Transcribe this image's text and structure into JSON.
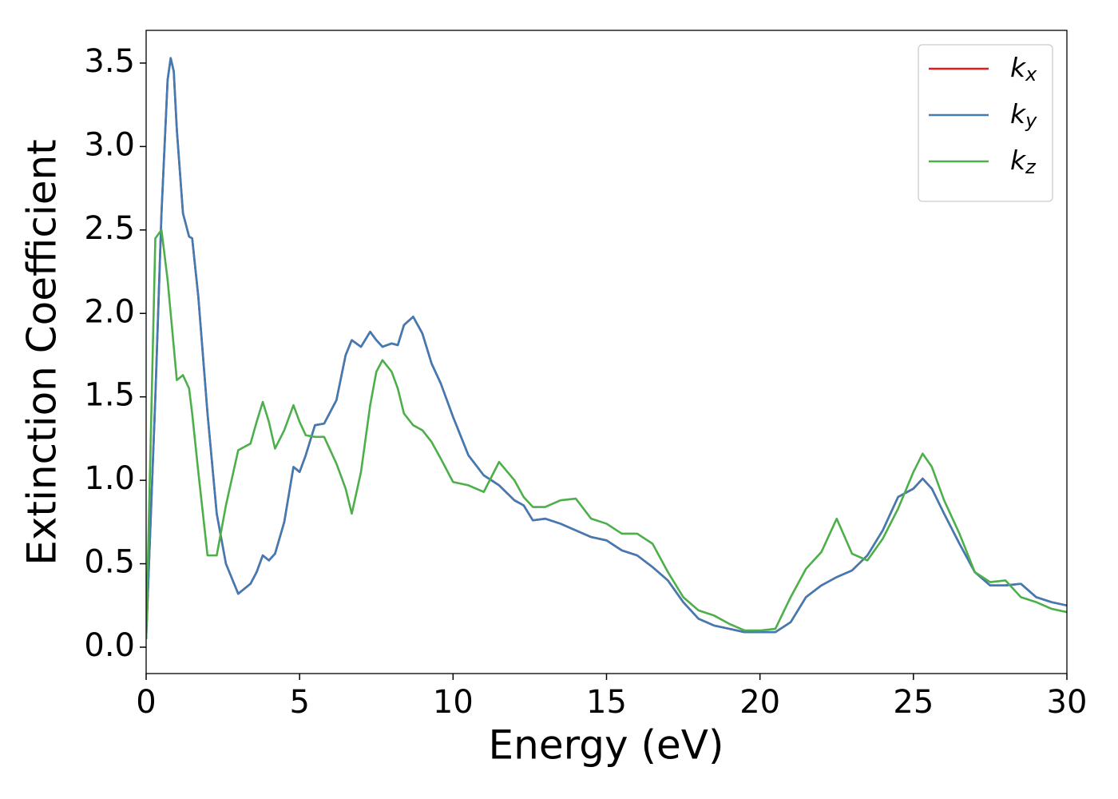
{
  "chart_data": {
    "type": "line",
    "xlabel": "Energy (eV)",
    "ylabel": "Extinction Coefficient",
    "xlim": [
      0,
      30
    ],
    "ylim": [
      -0.158,
      3.696
    ],
    "xticks": [
      0,
      5,
      10,
      15,
      20,
      25,
      30
    ],
    "yticks": [
      {
        "value": 0,
        "label": "0.0"
      },
      {
        "value": 0.5,
        "label": "0.5"
      },
      {
        "value": 1,
        "label": "1.0"
      },
      {
        "value": 1.5,
        "label": "1.5"
      },
      {
        "value": 2,
        "label": "2.0"
      },
      {
        "value": 2.5,
        "label": "2.5"
      },
      {
        "value": 3,
        "label": "3.0"
      },
      {
        "value": 3.5,
        "label": "3.5"
      }
    ],
    "legend": "upper right",
    "grid": false,
    "x": [
      0,
      0.3,
      0.5,
      0.7,
      0.8,
      0.9,
      1.0,
      1.2,
      1.4,
      1.5,
      1.7,
      2.0,
      2.3,
      2.6,
      3.0,
      3.4,
      3.6,
      3.8,
      4.0,
      4.2,
      4.5,
      4.8,
      5.0,
      5.2,
      5.5,
      5.8,
      6.2,
      6.5,
      6.7,
      7.0,
      7.3,
      7.5,
      7.7,
      8.0,
      8.2,
      8.4,
      8.7,
      9.0,
      9.3,
      9.6,
      10,
      10.5,
      11,
      11.5,
      12,
      12.3,
      12.6,
      13,
      13.5,
      14,
      14.5,
      15,
      15.5,
      16,
      16.5,
      17,
      17.5,
      18,
      18.5,
      19,
      19.5,
      20,
      20.5,
      21,
      21.5,
      22,
      22.5,
      23,
      23.5,
      24,
      24.5,
      25,
      25.3,
      25.6,
      26,
      26.5,
      27,
      27.5,
      28,
      28.5,
      29,
      29.5,
      30
    ],
    "series": [
      {
        "name": "kx",
        "color": "#e41a1c",
        "values": [
          0.05,
          1.5,
          2.6,
          3.4,
          3.53,
          3.45,
          3.1,
          2.6,
          2.46,
          2.45,
          2.1,
          1.4,
          0.8,
          0.5,
          0.32,
          0.38,
          0.45,
          0.55,
          0.52,
          0.56,
          0.75,
          1.08,
          1.05,
          1.15,
          1.33,
          1.34,
          1.48,
          1.75,
          1.84,
          1.8,
          1.89,
          1.84,
          1.8,
          1.82,
          1.81,
          1.93,
          1.98,
          1.88,
          1.7,
          1.58,
          1.38,
          1.15,
          1.03,
          0.97,
          0.88,
          0.85,
          0.76,
          0.77,
          0.74,
          0.7,
          0.66,
          0.64,
          0.58,
          0.55,
          0.48,
          0.4,
          0.27,
          0.17,
          0.13,
          0.11,
          0.09,
          0.09,
          0.09,
          0.15,
          0.3,
          0.37,
          0.42,
          0.46,
          0.55,
          0.7,
          0.9,
          0.95,
          1.01,
          0.95,
          0.8,
          0.62,
          0.45,
          0.37,
          0.37,
          0.38,
          0.3,
          0.27,
          0.25
        ]
      },
      {
        "name": "ky",
        "color": "#3f7bb5",
        "values": [
          0.05,
          1.5,
          2.6,
          3.4,
          3.53,
          3.45,
          3.1,
          2.6,
          2.46,
          2.45,
          2.1,
          1.4,
          0.8,
          0.5,
          0.32,
          0.38,
          0.45,
          0.55,
          0.52,
          0.56,
          0.75,
          1.08,
          1.05,
          1.15,
          1.33,
          1.34,
          1.48,
          1.75,
          1.84,
          1.8,
          1.89,
          1.84,
          1.8,
          1.82,
          1.81,
          1.93,
          1.98,
          1.88,
          1.7,
          1.58,
          1.38,
          1.15,
          1.03,
          0.97,
          0.88,
          0.85,
          0.76,
          0.77,
          0.74,
          0.7,
          0.66,
          0.64,
          0.58,
          0.55,
          0.48,
          0.4,
          0.27,
          0.17,
          0.13,
          0.11,
          0.09,
          0.09,
          0.09,
          0.15,
          0.3,
          0.37,
          0.42,
          0.46,
          0.55,
          0.7,
          0.9,
          0.95,
          1.01,
          0.95,
          0.8,
          0.62,
          0.45,
          0.37,
          0.37,
          0.38,
          0.3,
          0.27,
          0.25
        ]
      },
      {
        "name": "kz",
        "color": "#4daf4a",
        "values": [
          0.05,
          2.45,
          2.5,
          2.2,
          2.0,
          1.8,
          1.6,
          1.63,
          1.55,
          1.4,
          1.05,
          0.55,
          0.55,
          0.85,
          1.18,
          1.22,
          1.35,
          1.47,
          1.35,
          1.19,
          1.3,
          1.45,
          1.35,
          1.27,
          1.26,
          1.26,
          1.1,
          0.95,
          0.8,
          1.05,
          1.45,
          1.65,
          1.72,
          1.65,
          1.55,
          1.4,
          1.33,
          1.3,
          1.23,
          1.13,
          0.99,
          0.97,
          0.93,
          1.11,
          1.0,
          0.9,
          0.84,
          0.84,
          0.88,
          0.89,
          0.77,
          0.74,
          0.68,
          0.68,
          0.62,
          0.45,
          0.3,
          0.22,
          0.19,
          0.14,
          0.1,
          0.1,
          0.11,
          0.3,
          0.47,
          0.57,
          0.77,
          0.56,
          0.52,
          0.65,
          0.83,
          1.05,
          1.16,
          1.08,
          0.88,
          0.68,
          0.45,
          0.39,
          0.4,
          0.3,
          0.27,
          0.23,
          0.21
        ]
      }
    ]
  }
}
